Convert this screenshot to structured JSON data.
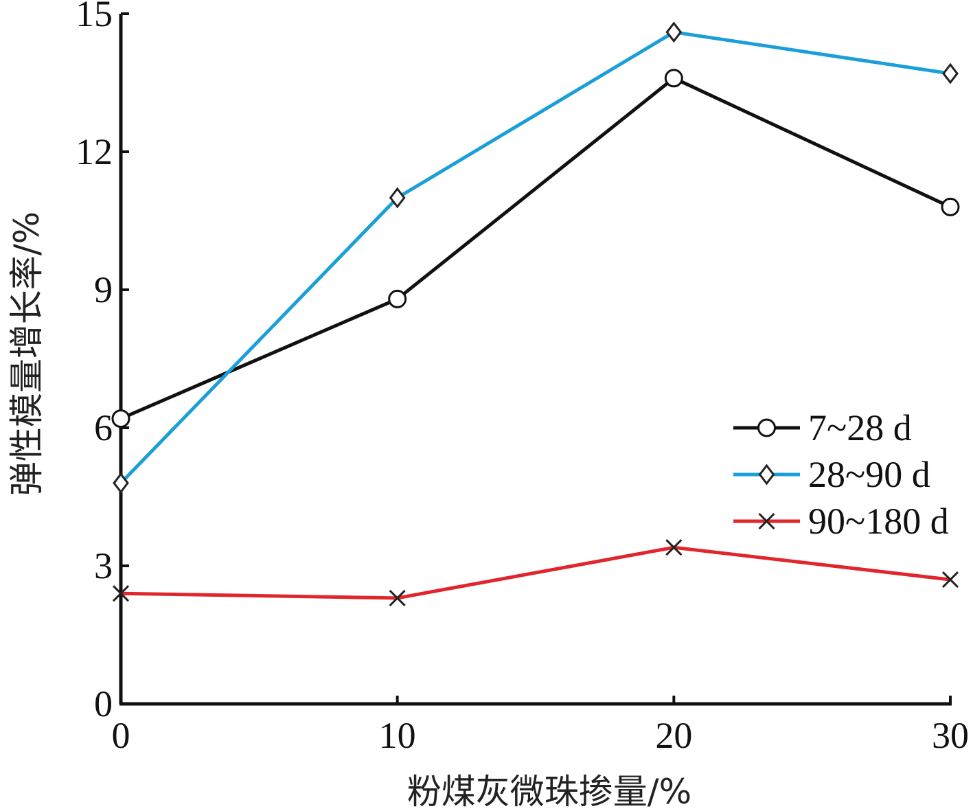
{
  "chart_data": {
    "type": "line",
    "xlabel": "粉煤灰微珠掺量/%",
    "ylabel": "弹性模量增长率/%",
    "x": [
      0,
      10,
      20,
      30
    ],
    "xticks": [
      "0",
      "10",
      "20",
      "30"
    ],
    "yticks": [
      "0",
      "3",
      "6",
      "9",
      "12",
      "15"
    ],
    "xlim": [
      0,
      30
    ],
    "ylim": [
      0,
      15
    ],
    "grid": false,
    "legend_position": "right",
    "series": [
      {
        "name": "7~28 d",
        "values": [
          6.2,
          8.8,
          13.6,
          10.8
        ],
        "color": "#111111",
        "marker": "circle"
      },
      {
        "name": "28~90 d",
        "values": [
          4.8,
          11.0,
          14.6,
          13.7
        ],
        "color": "#1b9fd8",
        "marker": "diamond"
      },
      {
        "name": "90~180 d",
        "values": [
          2.4,
          2.3,
          3.4,
          2.7
        ],
        "color": "#e0262c",
        "marker": "x"
      }
    ]
  }
}
